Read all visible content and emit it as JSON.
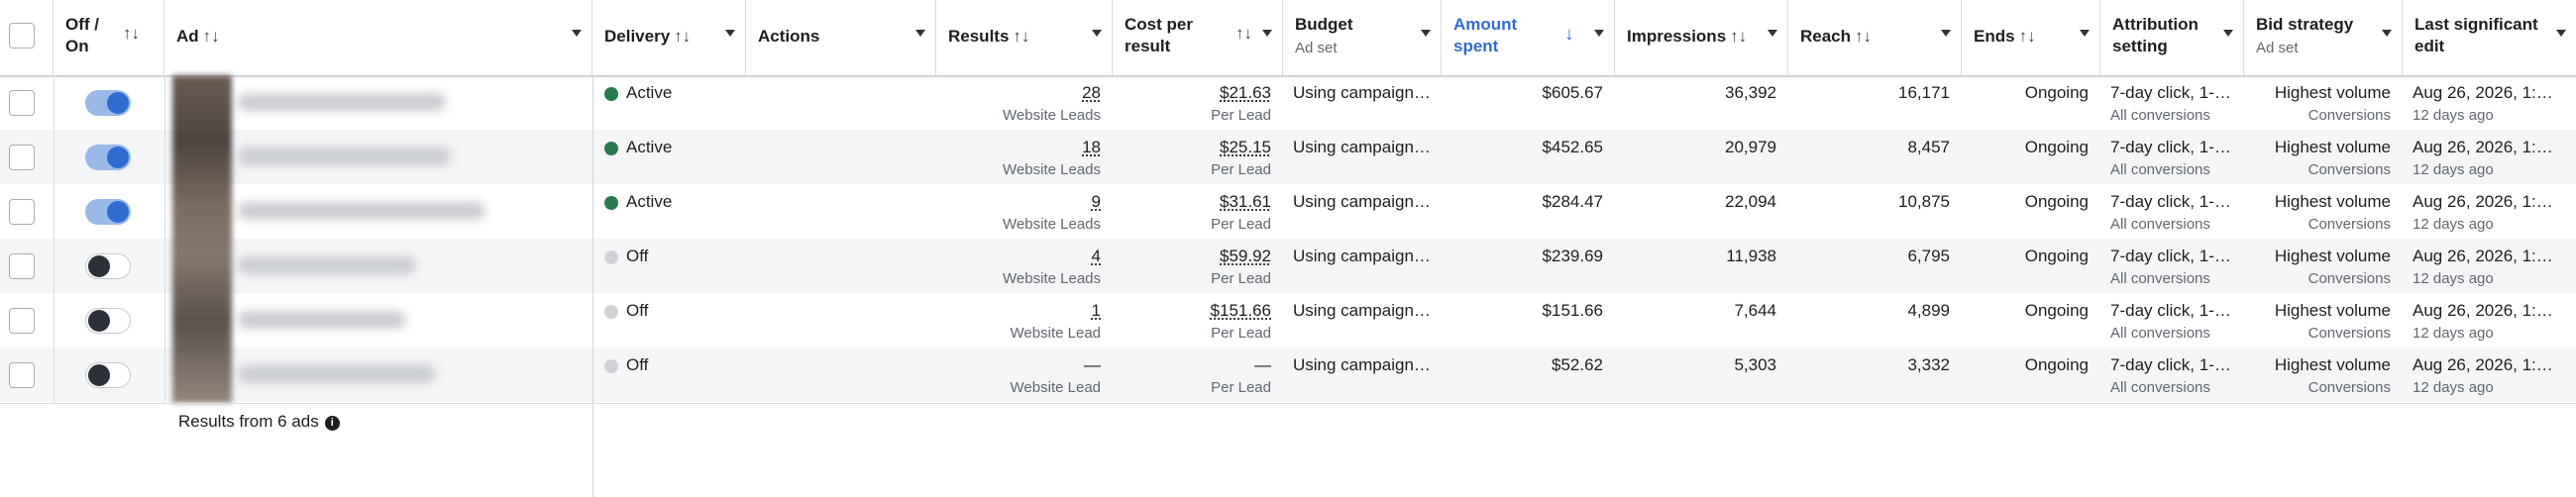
{
  "headers": {
    "onoff": "Off / On",
    "ad": "Ad",
    "delivery": "Delivery",
    "actions": "Actions",
    "results": "Results",
    "cpr": "Cost per result",
    "budget": "Budget",
    "budget_sub": "Ad set",
    "amount": "Amount spent",
    "impressions": "Impressions",
    "reach": "Reach",
    "ends": "Ends",
    "attribution": "Attribution setting",
    "bid": "Bid strategy",
    "bid_sub": "Ad set",
    "last_edit": "Last significant edit"
  },
  "sort_glyph": "↑↓",
  "sorted_glyph": "↓",
  "colors": {
    "active_dot": "#2a7a4f",
    "off_dot": "#cfd3d8",
    "accent": "#2e6cd1"
  },
  "rows": [
    {
      "on": true,
      "delivery": "Active",
      "results": "28",
      "results_sub": "Website Leads",
      "cpr": "$21.63",
      "cpr_sub": "Per Lead",
      "budget": "Using campaign…",
      "amount": "$605.67",
      "impressions": "36,392",
      "reach": "16,171",
      "ends": "Ongoing",
      "attribution": "7-day click, 1-…",
      "attribution_sub": "All conversions",
      "bid": "Highest volume",
      "bid_sub": "Conversions",
      "edit": "Aug 26, 2026, 1:…",
      "edit_sub": "12 days ago"
    },
    {
      "on": true,
      "delivery": "Active",
      "results": "18",
      "results_sub": "Website Leads",
      "cpr": "$25.15",
      "cpr_sub": "Per Lead",
      "budget": "Using campaign…",
      "amount": "$452.65",
      "impressions": "20,979",
      "reach": "8,457",
      "ends": "Ongoing",
      "attribution": "7-day click, 1-…",
      "attribution_sub": "All conversions",
      "bid": "Highest volume",
      "bid_sub": "Conversions",
      "edit": "Aug 26, 2026, 1:…",
      "edit_sub": "12 days ago"
    },
    {
      "on": true,
      "delivery": "Active",
      "results": "9",
      "results_sub": "Website Leads",
      "cpr": "$31.61",
      "cpr_sub": "Per Lead",
      "budget": "Using campaign…",
      "amount": "$284.47",
      "impressions": "22,094",
      "reach": "10,875",
      "ends": "Ongoing",
      "attribution": "7-day click, 1-…",
      "attribution_sub": "All conversions",
      "bid": "Highest volume",
      "bid_sub": "Conversions",
      "edit": "Aug 26, 2026, 1:…",
      "edit_sub": "12 days ago"
    },
    {
      "on": false,
      "delivery": "Off",
      "results": "4",
      "results_sub": "Website Leads",
      "cpr": "$59.92",
      "cpr_sub": "Per Lead",
      "budget": "Using campaign…",
      "amount": "$239.69",
      "impressions": "11,938",
      "reach": "6,795",
      "ends": "Ongoing",
      "attribution": "7-day click, 1-…",
      "attribution_sub": "All conversions",
      "bid": "Highest volume",
      "bid_sub": "Conversions",
      "edit": "Aug 26, 2026, 1:…",
      "edit_sub": "12 days ago"
    },
    {
      "on": false,
      "delivery": "Off",
      "results": "1",
      "results_sub": "Website Lead",
      "cpr": "$151.66",
      "cpr_sub": "Per Lead",
      "budget": "Using campaign…",
      "amount": "$151.66",
      "impressions": "7,644",
      "reach": "4,899",
      "ends": "Ongoing",
      "attribution": "7-day click, 1-…",
      "attribution_sub": "All conversions",
      "bid": "Highest volume",
      "bid_sub": "Conversions",
      "edit": "Aug 26, 2026, 1:…",
      "edit_sub": "12 days ago"
    },
    {
      "on": false,
      "delivery": "Off",
      "results": "—",
      "results_sub": "Website Lead",
      "cpr": "—",
      "cpr_sub": "Per Lead",
      "budget": "Using campaign…",
      "amount": "$52.62",
      "impressions": "5,303",
      "reach": "3,332",
      "ends": "Ongoing",
      "attribution": "7-day click, 1-…",
      "attribution_sub": "All conversions",
      "bid": "Highest volume",
      "bid_sub": "Conversions",
      "edit": "Aug 26, 2026, 1:…",
      "edit_sub": "12 days ago"
    }
  ],
  "footer": {
    "text": "Results from 6 ads",
    "info_icon": "info-icon"
  }
}
